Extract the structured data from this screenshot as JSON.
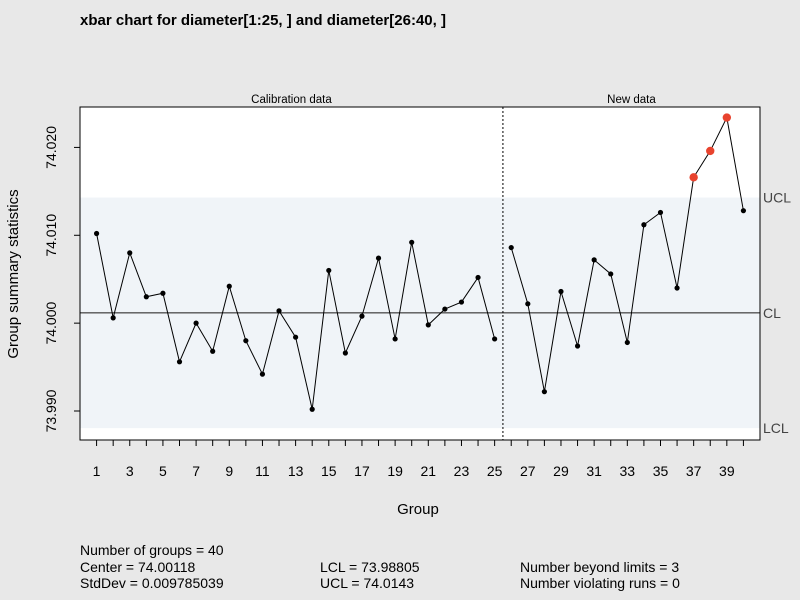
{
  "chart_data": {
    "type": "line",
    "title": "xbar chart for diameter[1:25, ] and diameter[26:40, ]",
    "xlabel": "Group",
    "ylabel": "Group summary statistics",
    "xlim": [
      1,
      40
    ],
    "ylim": [
      73.9867,
      74.0246
    ],
    "x_tick_labels": [
      "1",
      "3",
      "5",
      "7",
      "9",
      "11",
      "13",
      "15",
      "17",
      "19",
      "21",
      "23",
      "25",
      "27",
      "29",
      "31",
      "33",
      "35",
      "37",
      "39"
    ],
    "y_tick_labels": [
      "73.990",
      "74.000",
      "74.010",
      "74.020"
    ],
    "phases": [
      {
        "label": "Calibration data",
        "groups": [
          1,
          25
        ]
      },
      {
        "label": "New data",
        "groups": [
          26,
          40
        ]
      }
    ],
    "groups": [
      1,
      2,
      3,
      4,
      5,
      6,
      7,
      8,
      9,
      10,
      11,
      12,
      13,
      14,
      15,
      16,
      17,
      18,
      19,
      20,
      21,
      22,
      23,
      24,
      25,
      26,
      27,
      28,
      29,
      30,
      31,
      32,
      33,
      34,
      35,
      36,
      37,
      38,
      39,
      40
    ],
    "values": [
      74.0102,
      74.0006,
      74.008,
      74.003,
      74.0034,
      73.9956,
      74.0,
      73.9968,
      74.0042,
      73.998,
      73.9942,
      74.0014,
      73.9984,
      73.9902,
      74.006,
      73.9966,
      74.0008,
      74.0074,
      73.9982,
      74.0092,
      73.9998,
      74.0016,
      74.0024,
      74.0052,
      73.9982,
      74.0086,
      74.0022,
      73.9922,
      74.0036,
      73.9974,
      74.0072,
      74.0056,
      73.9978,
      74.0112,
      74.0126,
      74.004,
      74.0166,
      74.0196,
      74.0234,
      74.0128
    ],
    "beyond_limits": [
      37,
      38,
      39
    ],
    "limits": [
      {
        "label": "UCL",
        "value": 74.0143
      },
      {
        "label": "CL",
        "value": 74.00118
      },
      {
        "label": "LCL",
        "value": 73.98805
      }
    ],
    "colors": {
      "background": "#e8e8e8",
      "plot_area": "#ffffff",
      "control_band": "#f0f4f8",
      "point": "#000000",
      "violation": "#e8432e",
      "center_line": "#555555",
      "limit_label": "#444444"
    },
    "stats": {
      "col1": [
        "Number of groups = 40",
        "Center = 74.00118",
        "StdDev = 0.009785039"
      ],
      "col2": [
        "",
        "LCL = 73.98805",
        "UCL = 74.0143"
      ],
      "col3": [
        "",
        "Number beyond limits = 3",
        "Number violating runs = 0"
      ]
    }
  }
}
